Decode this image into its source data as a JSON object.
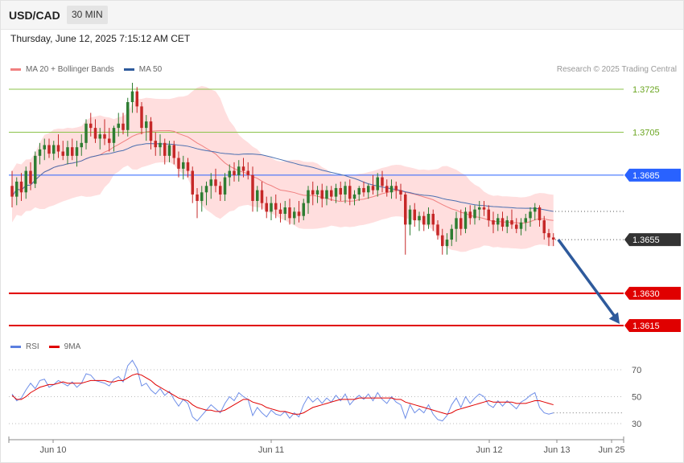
{
  "header": {
    "symbol": "USD/CAD",
    "timeframe": "30 MIN"
  },
  "datetime": "Thursday, June 12, 2025 7:15:12 AM CET",
  "legend_main": [
    {
      "label": "MA 20 + Bollinger Bands",
      "color": "#f08080"
    },
    {
      "label": "MA 50",
      "color": "#2e5a9c"
    }
  ],
  "credit": "Research © 2025 Trading Central",
  "legend_rsi": [
    {
      "label": "RSI",
      "color": "#5b7fe0"
    },
    {
      "label": "9MA",
      "color": "#e00000"
    }
  ],
  "colors": {
    "up": "#2e7d32",
    "down": "#c62828",
    "bb_fill": "#ffdede",
    "ma20": "#f08080",
    "ma50": "#4a6fb0",
    "rsi": "#6e8ee8",
    "rsi_ma": "#e00000"
  },
  "chart_data": [
    {
      "type": "candlestick",
      "title": "USD/CAD",
      "timeframe": "30 MIN",
      "ylim": [
        1.3609,
        1.3736
      ],
      "x_labels": [
        "Jun 10",
        "Jun 11",
        "Jun 12",
        "Jun 13",
        "Jun 25"
      ],
      "levels": [
        {
          "value": 1.3725,
          "label": "1.3725",
          "kind": "resistance",
          "color": "#8bc34a"
        },
        {
          "value": 1.3705,
          "label": "1.3705",
          "kind": "resistance",
          "color": "#8bc34a"
        },
        {
          "value": 1.3685,
          "label": "1.3685",
          "kind": "pivot",
          "color": "#2962ff"
        },
        {
          "value": 1.3655,
          "label": "1.3655",
          "kind": "last",
          "color": "#333333"
        },
        {
          "value": 1.363,
          "label": "1.3630",
          "kind": "target",
          "color": "#e00000"
        },
        {
          "value": 1.3615,
          "label": "1.3615",
          "kind": "target",
          "color": "#e00000"
        }
      ],
      "forecast_arrow": {
        "from": 1.3655,
        "to": 1.3615
      },
      "candles": [
        [
          1.368,
          1.3687,
          1.367,
          1.3675
        ],
        [
          1.3675,
          1.3684,
          1.3671,
          1.3682
        ],
        [
          1.3682,
          1.3686,
          1.3673,
          1.3677
        ],
        [
          1.3677,
          1.3689,
          1.3674,
          1.3687
        ],
        [
          1.3687,
          1.3691,
          1.3678,
          1.3681
        ],
        [
          1.3681,
          1.3696,
          1.3679,
          1.3694
        ],
        [
          1.3694,
          1.37,
          1.369,
          1.3697
        ],
        [
          1.3697,
          1.3702,
          1.3692,
          1.3699
        ],
        [
          1.3699,
          1.3702,
          1.3693,
          1.3695
        ],
        [
          1.3695,
          1.3701,
          1.3692,
          1.3699
        ],
        [
          1.3699,
          1.3704,
          1.3693,
          1.3696
        ],
        [
          1.3696,
          1.3701,
          1.3692,
          1.3694
        ],
        [
          1.3694,
          1.3701,
          1.369,
          1.3698
        ],
        [
          1.3698,
          1.3702,
          1.3692,
          1.3694
        ],
        [
          1.3694,
          1.3701,
          1.3689,
          1.3698
        ],
        [
          1.3698,
          1.3704,
          1.3694,
          1.37
        ],
        [
          1.37,
          1.3711,
          1.3697,
          1.3709
        ],
        [
          1.3709,
          1.3714,
          1.3703,
          1.3707
        ],
        [
          1.3707,
          1.3711,
          1.37,
          1.3702
        ],
        [
          1.3702,
          1.3707,
          1.3697,
          1.3704
        ],
        [
          1.3704,
          1.3711,
          1.3699,
          1.3702
        ],
        [
          1.3702,
          1.3707,
          1.3696,
          1.37
        ],
        [
          1.37,
          1.3708,
          1.3696,
          1.3707
        ],
        [
          1.3707,
          1.3714,
          1.3703,
          1.3709
        ],
        [
          1.3709,
          1.3714,
          1.3704,
          1.3706
        ],
        [
          1.3706,
          1.3721,
          1.3703,
          1.3719
        ],
        [
          1.3719,
          1.3728,
          1.3714,
          1.3724
        ],
        [
          1.3724,
          1.3726,
          1.3714,
          1.3717
        ],
        [
          1.3717,
          1.3719,
          1.3704,
          1.3707
        ],
        [
          1.3707,
          1.3713,
          1.3701,
          1.371
        ],
        [
          1.371,
          1.3712,
          1.3697,
          1.3701
        ],
        [
          1.3701,
          1.3705,
          1.3694,
          1.3698
        ],
        [
          1.3698,
          1.3704,
          1.3694,
          1.37
        ],
        [
          1.37,
          1.3702,
          1.369,
          1.3694
        ],
        [
          1.3694,
          1.3701,
          1.3691,
          1.3699
        ],
        [
          1.3699,
          1.3701,
          1.369,
          1.3693
        ],
        [
          1.3693,
          1.3696,
          1.3684,
          1.3688
        ],
        [
          1.3688,
          1.3694,
          1.3683,
          1.3691
        ],
        [
          1.3691,
          1.3693,
          1.3684,
          1.3687
        ],
        [
          1.3687,
          1.3689,
          1.3672,
          1.3676
        ],
        [
          1.3676,
          1.3679,
          1.3665,
          1.3673
        ],
        [
          1.3673,
          1.368,
          1.3668,
          1.3677
        ],
        [
          1.3677,
          1.3682,
          1.3671,
          1.368
        ],
        [
          1.368,
          1.3686,
          1.3674,
          1.3683
        ],
        [
          1.3683,
          1.3688,
          1.3677,
          1.368
        ],
        [
          1.368,
          1.3682,
          1.3673,
          1.3676
        ],
        [
          1.3676,
          1.3686,
          1.3673,
          1.3684
        ],
        [
          1.3684,
          1.369,
          1.368,
          1.3687
        ],
        [
          1.3687,
          1.3691,
          1.3682,
          1.3685
        ],
        [
          1.3685,
          1.3692,
          1.3682,
          1.3689
        ],
        [
          1.3689,
          1.3693,
          1.3684,
          1.3687
        ],
        [
          1.3687,
          1.3691,
          1.3683,
          1.3685
        ],
        [
          1.3685,
          1.3689,
          1.3668,
          1.3673
        ],
        [
          1.3673,
          1.368,
          1.3668,
          1.3678
        ],
        [
          1.3678,
          1.3682,
          1.3669,
          1.3672
        ],
        [
          1.3672,
          1.3675,
          1.3665,
          1.3668
        ],
        [
          1.3668,
          1.3675,
          1.3664,
          1.3672
        ],
        [
          1.3672,
          1.3676,
          1.3665,
          1.3669
        ],
        [
          1.3669,
          1.3672,
          1.3663,
          1.3667
        ],
        [
          1.3667,
          1.3673,
          1.3664,
          1.367
        ],
        [
          1.367,
          1.3674,
          1.3662,
          1.3665
        ],
        [
          1.3665,
          1.367,
          1.3662,
          1.3668
        ],
        [
          1.3668,
          1.3673,
          1.3663,
          1.3666
        ],
        [
          1.3666,
          1.3674,
          1.3664,
          1.3672
        ],
        [
          1.3672,
          1.368,
          1.3667,
          1.3678
        ],
        [
          1.3678,
          1.3682,
          1.3671,
          1.3676
        ],
        [
          1.3676,
          1.368,
          1.3672,
          1.3678
        ],
        [
          1.3678,
          1.3681,
          1.367,
          1.3674
        ],
        [
          1.3674,
          1.368,
          1.3671,
          1.3678
        ],
        [
          1.3678,
          1.368,
          1.3673,
          1.3675
        ],
        [
          1.3675,
          1.3681,
          1.3672,
          1.3679
        ],
        [
          1.3679,
          1.3682,
          1.3673,
          1.3676
        ],
        [
          1.3676,
          1.3682,
          1.3672,
          1.368
        ],
        [
          1.368,
          1.3683,
          1.3671,
          1.3674
        ],
        [
          1.3674,
          1.3678,
          1.3671,
          1.3676
        ],
        [
          1.3676,
          1.368,
          1.3673,
          1.3679
        ],
        [
          1.3679,
          1.3682,
          1.3675,
          1.3677
        ],
        [
          1.3677,
          1.3681,
          1.3674,
          1.368
        ],
        [
          1.368,
          1.3685,
          1.3676,
          1.3678
        ],
        [
          1.3678,
          1.3686,
          1.3675,
          1.3684
        ],
        [
          1.3684,
          1.3687,
          1.3677,
          1.368
        ],
        [
          1.368,
          1.3683,
          1.3675,
          1.3677
        ],
        [
          1.3677,
          1.3683,
          1.3674,
          1.368
        ],
        [
          1.368,
          1.3682,
          1.3674,
          1.3678
        ],
        [
          1.3678,
          1.3681,
          1.3673,
          1.3676
        ],
        [
          1.3676,
          1.3677,
          1.3648,
          1.3662
        ],
        [
          1.3662,
          1.3671,
          1.3657,
          1.3669
        ],
        [
          1.3669,
          1.3672,
          1.3661,
          1.3664
        ],
        [
          1.3664,
          1.3668,
          1.3659,
          1.3666
        ],
        [
          1.3666,
          1.3668,
          1.3659,
          1.3662
        ],
        [
          1.3662,
          1.367,
          1.366,
          1.3667
        ],
        [
          1.3667,
          1.3669,
          1.3659,
          1.3662
        ],
        [
          1.3662,
          1.3664,
          1.3655,
          1.3657
        ],
        [
          1.3657,
          1.366,
          1.3648,
          1.3652
        ],
        [
          1.3652,
          1.3658,
          1.3648,
          1.3655
        ],
        [
          1.3655,
          1.3662,
          1.3652,
          1.366
        ],
        [
          1.366,
          1.3668,
          1.3654,
          1.3665
        ],
        [
          1.3665,
          1.3669,
          1.3657,
          1.366
        ],
        [
          1.366,
          1.367,
          1.3658,
          1.3668
        ],
        [
          1.3668,
          1.3671,
          1.3662,
          1.3665
        ],
        [
          1.3665,
          1.3671,
          1.3662,
          1.3669
        ],
        [
          1.3669,
          1.3673,
          1.3664,
          1.367
        ],
        [
          1.367,
          1.3673,
          1.3666,
          1.3669
        ],
        [
          1.3669,
          1.3671,
          1.3661,
          1.3664
        ],
        [
          1.3664,
          1.3668,
          1.3658,
          1.3662
        ],
        [
          1.3662,
          1.3667,
          1.3659,
          1.3665
        ],
        [
          1.3665,
          1.3668,
          1.3659,
          1.3661
        ],
        [
          1.3661,
          1.3666,
          1.3658,
          1.3664
        ],
        [
          1.3664,
          1.3669,
          1.366,
          1.3662
        ],
        [
          1.3662,
          1.3665,
          1.3658,
          1.366
        ],
        [
          1.366,
          1.3665,
          1.3657,
          1.3663
        ],
        [
          1.3663,
          1.3667,
          1.3659,
          1.3665
        ],
        [
          1.3665,
          1.367,
          1.3661,
          1.3668
        ],
        [
          1.3668,
          1.3672,
          1.3664,
          1.367
        ],
        [
          1.367,
          1.3671,
          1.3661,
          1.3664
        ],
        [
          1.3664,
          1.3666,
          1.3655,
          1.3658
        ],
        [
          1.3658,
          1.366,
          1.3652,
          1.3656
        ],
        [
          1.3656,
          1.3658,
          1.3652,
          1.3655
        ]
      ]
    },
    {
      "type": "line",
      "title": "RSI",
      "ylim": [
        25,
        80
      ],
      "y_ticks": [
        70,
        50,
        30
      ],
      "series": [
        {
          "name": "RSI",
          "values": [
            52,
            47,
            49,
            55,
            60,
            56,
            62,
            63,
            57,
            59,
            62,
            60,
            58,
            61,
            57,
            60,
            67,
            66,
            62,
            61,
            60,
            58,
            63,
            65,
            61,
            73,
            77,
            71,
            58,
            60,
            55,
            52,
            56,
            51,
            54,
            48,
            43,
            48,
            45,
            35,
            32,
            36,
            40,
            44,
            41,
            38,
            45,
            50,
            47,
            53,
            50,
            48,
            36,
            42,
            38,
            35,
            40,
            37,
            36,
            39,
            34,
            38,
            35,
            44,
            50,
            46,
            49,
            45,
            49,
            46,
            51,
            47,
            52,
            44,
            48,
            51,
            48,
            52,
            47,
            53,
            48,
            45,
            50,
            46,
            44,
            34,
            44,
            38,
            41,
            38,
            44,
            37,
            33,
            32,
            36,
            44,
            49,
            42,
            50,
            45,
            49,
            52,
            50,
            44,
            42,
            47,
            43,
            47,
            44,
            41,
            46,
            48,
            51,
            53,
            42,
            38,
            37,
            38
          ]
        },
        {
          "name": "9MA",
          "values": [
            51,
            48,
            48,
            50,
            53,
            55,
            57,
            58,
            59,
            59,
            60,
            61,
            60,
            60,
            60,
            60,
            61,
            62,
            62,
            62,
            62,
            61,
            61,
            62,
            62,
            64,
            66,
            67,
            66,
            64,
            62,
            59,
            57,
            55,
            53,
            51,
            49,
            48,
            47,
            44,
            42,
            41,
            40,
            40,
            39,
            39,
            40,
            42,
            44,
            46,
            48,
            48,
            46,
            45,
            44,
            42,
            41,
            40,
            39,
            39,
            38,
            37,
            37,
            38,
            40,
            42,
            43,
            44,
            45,
            46,
            47,
            48,
            48,
            48,
            48,
            49,
            49,
            49,
            49,
            49,
            49,
            49,
            49,
            48,
            48,
            46,
            45,
            44,
            43,
            42,
            41,
            40,
            39,
            38,
            37,
            38,
            40,
            41,
            42,
            43,
            44,
            45,
            46,
            47,
            46,
            46,
            46,
            46,
            46,
            45,
            45,
            45,
            46,
            47,
            47,
            46,
            45,
            44
          ]
        }
      ]
    }
  ]
}
